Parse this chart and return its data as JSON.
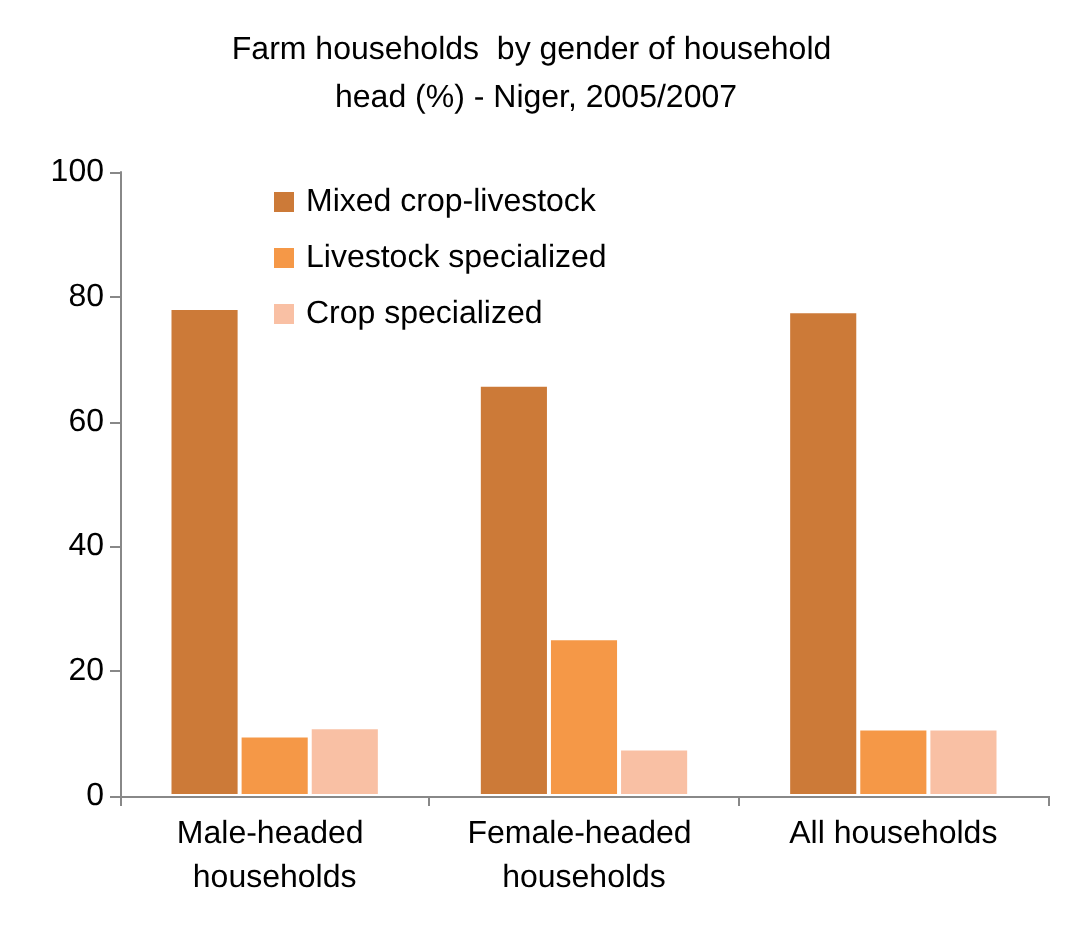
{
  "chart_data": {
    "type": "bar",
    "title": "Farm households  by gender of household head (%) - Niger, 2005/2007",
    "categories": [
      "Male-headed households",
      "Female-headed households",
      "All households"
    ],
    "series": [
      {
        "name": "Mixed crop-livestock",
        "color": "#cc7a38",
        "values": [
          78.2,
          65.9,
          77.7
        ]
      },
      {
        "name": "Livestock specialized",
        "color": "#f59847",
        "values": [
          9.7,
          25.3,
          10.8
        ]
      },
      {
        "name": "Crop specialized",
        "color": "#f9c0a4",
        "values": [
          11,
          7.6,
          10.8
        ]
      }
    ],
    "ylim": [
      0,
      100
    ],
    "yticks": [
      0,
      20,
      40,
      60,
      80,
      100
    ],
    "grid": false,
    "legend": "top"
  }
}
